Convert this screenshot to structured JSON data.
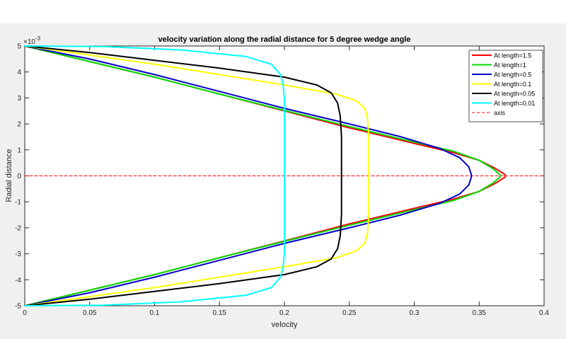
{
  "window": {
    "background": "#f0f0f0",
    "top_strip_color": "#ffffff"
  },
  "chart_data": {
    "type": "line",
    "title": "velocity variation along the radial distance for 5 degree wedge angle",
    "xlabel": "velocity",
    "ylabel": "Radial distance",
    "xlim": [
      0,
      0.4
    ],
    "ylim": [
      -0.005,
      0.005
    ],
    "x_ticks": [
      0,
      0.05,
      0.1,
      0.15,
      0.2,
      0.25,
      0.3,
      0.35,
      0.4
    ],
    "x_tick_labels": [
      "0",
      "0.05",
      "0.1",
      "0.15",
      "0.2",
      "0.25",
      "0.3",
      "0.35",
      "0.4"
    ],
    "y_ticks": [
      5,
      4,
      3,
      2,
      1,
      0,
      -1,
      -2,
      -3,
      -4,
      -5
    ],
    "y_tick_labels": [
      "5",
      "4",
      "3",
      "2",
      "1",
      "0",
      "-1",
      "-2",
      "-3",
      "-4",
      "-5"
    ],
    "y_exponent_label": "×10",
    "y_exponent_power": "-3",
    "grid": false,
    "legend_position": "top-right",
    "series": [
      {
        "name": "At length=1.5",
        "color": "#ff0000",
        "points": [
          [
            0,
            5
          ],
          [
            0.05,
            4.4
          ],
          [
            0.1,
            3.8
          ],
          [
            0.15,
            3.15
          ],
          [
            0.2,
            2.5
          ],
          [
            0.25,
            1.85
          ],
          [
            0.3,
            1.25
          ],
          [
            0.33,
            0.9
          ],
          [
            0.35,
            0.6
          ],
          [
            0.362,
            0.3
          ],
          [
            0.37,
            0.05
          ],
          [
            0.37,
            -0.05
          ],
          [
            0.362,
            -0.3
          ],
          [
            0.35,
            -0.6
          ],
          [
            0.33,
            -0.9
          ],
          [
            0.3,
            -1.25
          ],
          [
            0.25,
            -1.85
          ],
          [
            0.2,
            -2.5
          ],
          [
            0.15,
            -3.15
          ],
          [
            0.1,
            -3.8
          ],
          [
            0.05,
            -4.4
          ],
          [
            0,
            -5
          ]
        ]
      },
      {
        "name": "At length=1",
        "color": "#00dd00",
        "points": [
          [
            0,
            5
          ],
          [
            0.05,
            4.4
          ],
          [
            0.1,
            3.8
          ],
          [
            0.15,
            3.15
          ],
          [
            0.2,
            2.52
          ],
          [
            0.25,
            1.9
          ],
          [
            0.3,
            1.3
          ],
          [
            0.33,
            0.95
          ],
          [
            0.35,
            0.6
          ],
          [
            0.36,
            0.3
          ],
          [
            0.366,
            0.05
          ],
          [
            0.366,
            -0.05
          ],
          [
            0.36,
            -0.3
          ],
          [
            0.35,
            -0.6
          ],
          [
            0.33,
            -0.95
          ],
          [
            0.3,
            -1.3
          ],
          [
            0.25,
            -1.9
          ],
          [
            0.2,
            -2.52
          ],
          [
            0.15,
            -3.15
          ],
          [
            0.1,
            -3.8
          ],
          [
            0.05,
            -4.4
          ],
          [
            0,
            -5
          ]
        ]
      },
      {
        "name": "At length=0.5",
        "color": "#0000cc",
        "points": [
          [
            0,
            5
          ],
          [
            0.05,
            4.5
          ],
          [
            0.1,
            3.9
          ],
          [
            0.15,
            3.25
          ],
          [
            0.2,
            2.6
          ],
          [
            0.25,
            2.0
          ],
          [
            0.29,
            1.5
          ],
          [
            0.32,
            1.05
          ],
          [
            0.335,
            0.7
          ],
          [
            0.342,
            0.35
          ],
          [
            0.344,
            0.05
          ],
          [
            0.344,
            -0.05
          ],
          [
            0.342,
            -0.35
          ],
          [
            0.335,
            -0.7
          ],
          [
            0.32,
            -1.05
          ],
          [
            0.29,
            -1.5
          ],
          [
            0.25,
            -2.0
          ],
          [
            0.2,
            -2.6
          ],
          [
            0.15,
            -3.25
          ],
          [
            0.1,
            -3.9
          ],
          [
            0.05,
            -4.5
          ],
          [
            0,
            -5
          ]
        ]
      },
      {
        "name": "At length=0.1",
        "color": "#ffff00",
        "points": [
          [
            0,
            5
          ],
          [
            0.05,
            4.65
          ],
          [
            0.1,
            4.3
          ],
          [
            0.15,
            3.9
          ],
          [
            0.2,
            3.5
          ],
          [
            0.24,
            3.15
          ],
          [
            0.255,
            2.9
          ],
          [
            0.262,
            2.6
          ],
          [
            0.264,
            2.2
          ],
          [
            0.265,
            1.5
          ],
          [
            0.265,
            0
          ],
          [
            0.265,
            -1.5
          ],
          [
            0.264,
            -2.2
          ],
          [
            0.262,
            -2.6
          ],
          [
            0.255,
            -2.9
          ],
          [
            0.24,
            -3.15
          ],
          [
            0.2,
            -3.5
          ],
          [
            0.15,
            -3.9
          ],
          [
            0.1,
            -4.3
          ],
          [
            0.05,
            -4.65
          ],
          [
            0,
            -5
          ]
        ]
      },
      {
        "name": "At length=0.05",
        "color": "#000000",
        "points": [
          [
            0,
            5
          ],
          [
            0.05,
            4.75
          ],
          [
            0.1,
            4.45
          ],
          [
            0.15,
            4.15
          ],
          [
            0.2,
            3.8
          ],
          [
            0.225,
            3.5
          ],
          [
            0.236,
            3.2
          ],
          [
            0.241,
            2.8
          ],
          [
            0.243,
            2.3
          ],
          [
            0.244,
            1.5
          ],
          [
            0.244,
            0
          ],
          [
            0.244,
            -1.5
          ],
          [
            0.243,
            -2.3
          ],
          [
            0.241,
            -2.8
          ],
          [
            0.236,
            -3.2
          ],
          [
            0.225,
            -3.5
          ],
          [
            0.2,
            -3.8
          ],
          [
            0.15,
            -4.15
          ],
          [
            0.1,
            -4.45
          ],
          [
            0.05,
            -4.75
          ],
          [
            0,
            -5
          ]
        ]
      },
      {
        "name": "At length=0.01",
        "color": "#00ffff",
        "points": [
          [
            0,
            5
          ],
          [
            0.06,
            4.98
          ],
          [
            0.12,
            4.85
          ],
          [
            0.17,
            4.6
          ],
          [
            0.19,
            4.3
          ],
          [
            0.197,
            3.9
          ],
          [
            0.199,
            3.5
          ],
          [
            0.2,
            3.0
          ],
          [
            0.2,
            0
          ],
          [
            0.2,
            -3.0
          ],
          [
            0.199,
            -3.5
          ],
          [
            0.197,
            -3.9
          ],
          [
            0.19,
            -4.3
          ],
          [
            0.17,
            -4.6
          ],
          [
            0.12,
            -4.85
          ],
          [
            0.06,
            -4.98
          ],
          [
            0,
            -5
          ]
        ]
      },
      {
        "name": "axis",
        "color": "#ff0000",
        "dashed": true,
        "points": [
          [
            0,
            0
          ],
          [
            0.4,
            0
          ]
        ]
      }
    ]
  }
}
